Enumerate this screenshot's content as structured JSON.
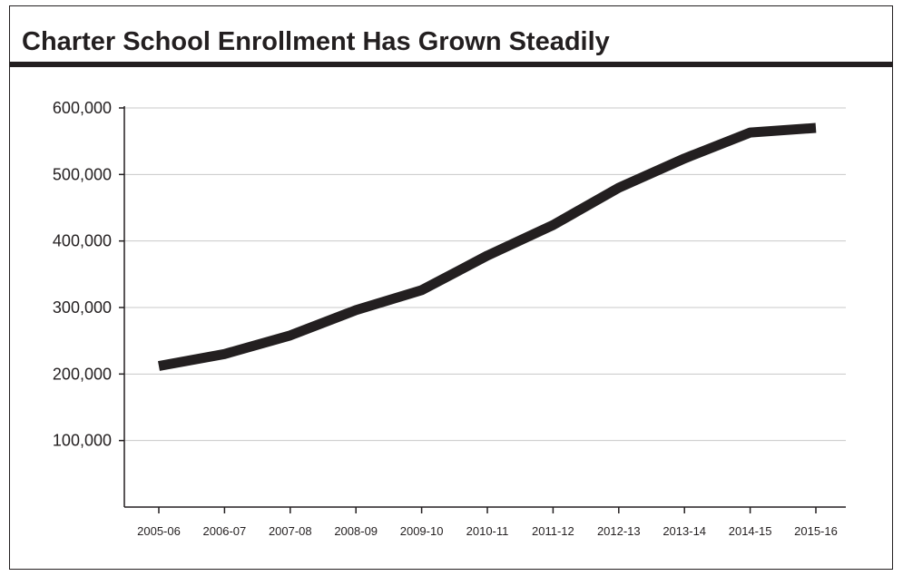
{
  "chart_data": {
    "type": "line",
    "title": "Charter School Enrollment Has Grown Steadily",
    "xlabel": "",
    "ylabel": "",
    "categories": [
      "2005-06",
      "2006-07",
      "2007-08",
      "2008-09",
      "2009-10",
      "2010-11",
      "2011-12",
      "2012-13",
      "2013-14",
      "2014-15",
      "2015-16"
    ],
    "series": [
      {
        "values": [
          212000,
          230000,
          258000,
          296000,
          326000,
          378000,
          424000,
          480000,
          524000,
          563000,
          570000
        ]
      }
    ],
    "ylim": [
      0,
      600000
    ],
    "yticks": [
      100000,
      200000,
      300000,
      400000,
      500000,
      600000
    ],
    "ytick_labels": [
      "100,000",
      "200,000",
      "300,000",
      "400,000",
      "500,000",
      "600,000"
    ],
    "grid": true,
    "line_color": "#231f20"
  }
}
